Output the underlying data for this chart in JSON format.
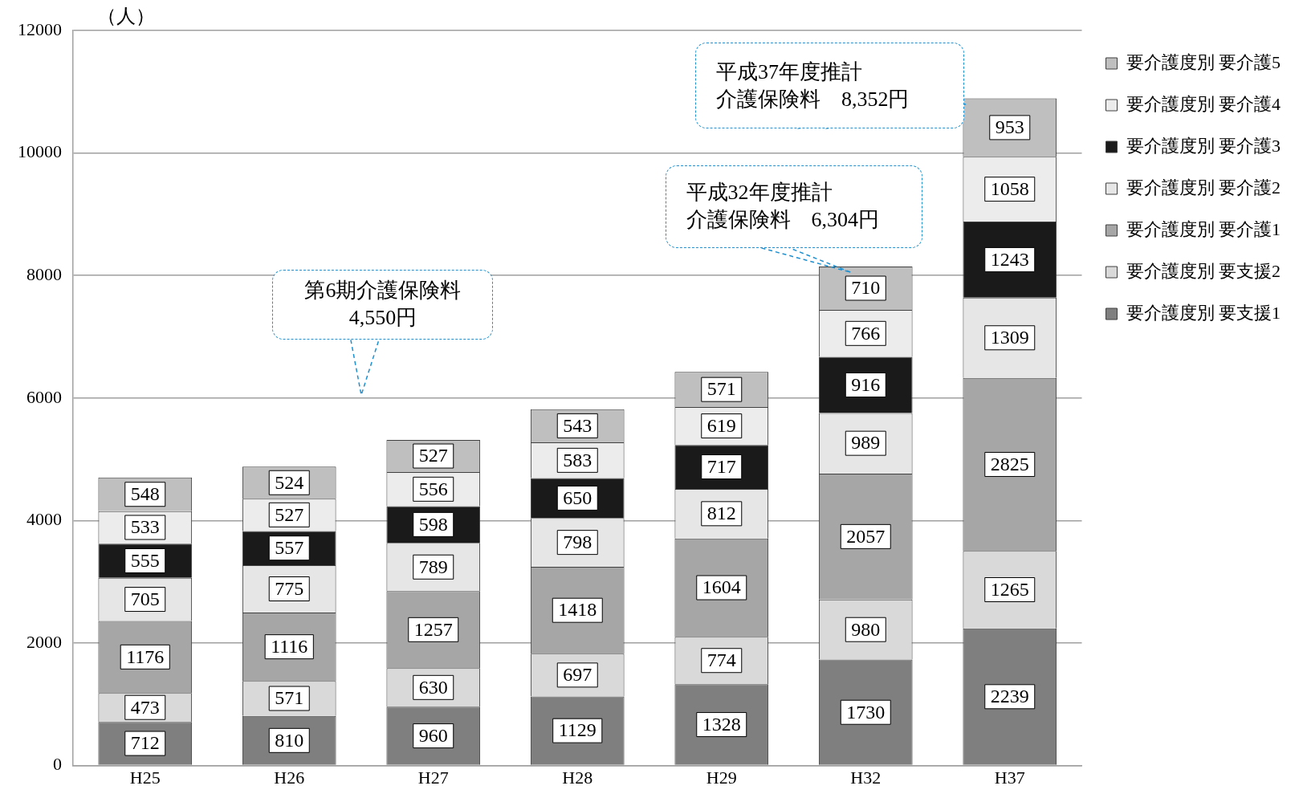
{
  "chart_data": {
    "type": "bar",
    "stacked": true,
    "ylabel": "（人）",
    "categories": [
      "H25",
      "H26",
      "H27",
      "H28",
      "H29",
      "H32",
      "H37"
    ],
    "series": [
      {
        "name": "要介護度別 要支援1",
        "color": "#7f7f7f",
        "values": [
          712,
          810,
          960,
          1129,
          1328,
          1730,
          2239
        ]
      },
      {
        "name": "要介護度別 要支援2",
        "color": "#d9d9d9",
        "values": [
          473,
          571,
          630,
          697,
          774,
          980,
          1265
        ]
      },
      {
        "name": "要介護度別 要介護1",
        "color": "#a6a6a6",
        "values": [
          1176,
          1116,
          1257,
          1418,
          1604,
          2057,
          2825
        ]
      },
      {
        "name": "要介護度別 要介護2",
        "color": "#e6e6e6",
        "values": [
          705,
          775,
          789,
          798,
          812,
          989,
          1309
        ]
      },
      {
        "name": "要介護度別 要介護3",
        "color": "#1a1a1a",
        "values": [
          555,
          557,
          598,
          650,
          717,
          916,
          1243
        ]
      },
      {
        "name": "要介護度別 要介護4",
        "color": "#ececec",
        "values": [
          533,
          527,
          556,
          583,
          619,
          766,
          1058
        ]
      },
      {
        "name": "要介護度別 要介護5",
        "color": "#bfbfbf",
        "values": [
          548,
          524,
          527,
          543,
          571,
          710,
          953
        ]
      }
    ],
    "ylim": [
      0,
      12000
    ],
    "yticks": [
      0,
      2000,
      4000,
      6000,
      8000,
      10000,
      12000
    ],
    "grid": "y",
    "legend": "right",
    "data_labels": true,
    "annotations": [
      "第6期介護保険料",
      "4,550円",
      "平成32年度推計",
      "介護保険料　6,304円",
      "平成37年度推計",
      "介護保険料　8,352円"
    ]
  }
}
